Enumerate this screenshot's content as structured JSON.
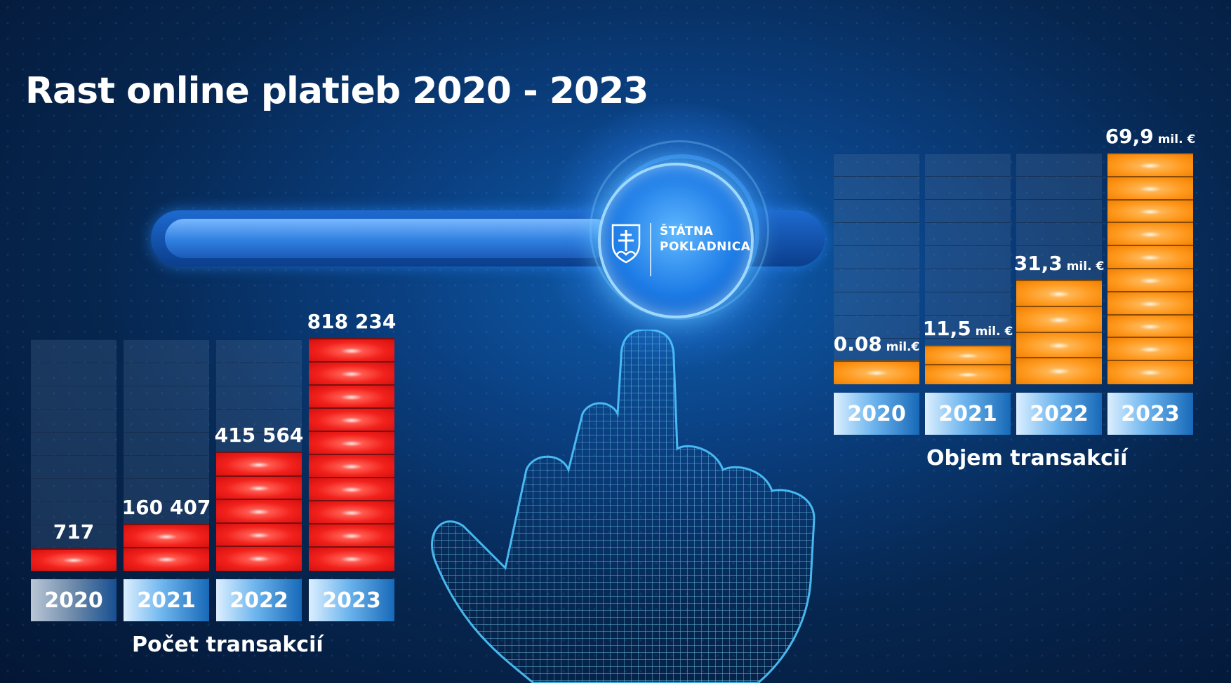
{
  "title": "Rast online platieb 2020 - 2023",
  "logo": {
    "line1": "ŠTÁTNA",
    "line2": "POKLADNICA"
  },
  "colors": {
    "count_bar": "#f2211c",
    "volume_bar": "#ff9a1f",
    "year_box": "#1769b8"
  },
  "chart_data": [
    {
      "type": "bar",
      "title": "",
      "xlabel": "Počet transakcií",
      "ylabel": "",
      "categories": [
        "2020",
        "2021",
        "2022",
        "2023"
      ],
      "values": [
        717,
        160407,
        415564,
        818234
      ],
      "value_labels": [
        "717",
        "160 407",
        "415 564",
        "818 234"
      ],
      "units": [
        "",
        "",
        "",
        ""
      ],
      "ylim": [
        0,
        818234
      ],
      "grid": false,
      "legend": "none"
    },
    {
      "type": "bar",
      "title": "",
      "xlabel": "Objem transakcií",
      "ylabel": "",
      "categories": [
        "2020",
        "2021",
        "2022",
        "2023"
      ],
      "values": [
        0.08,
        11.5,
        31.3,
        69.9
      ],
      "value_labels": [
        "0.08",
        "11,5",
        "31,3",
        "69,9"
      ],
      "units": [
        "mil.€",
        "mil. €",
        "mil. €",
        "mil. €"
      ],
      "ylim": [
        0,
        69.9
      ],
      "grid": false,
      "legend": "none"
    }
  ]
}
